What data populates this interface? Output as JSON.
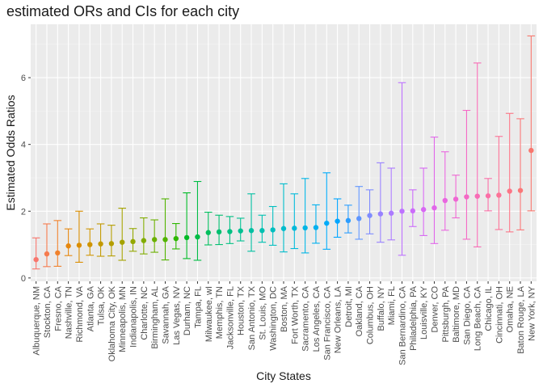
{
  "chart_data": {
    "type": "scatter",
    "title": "estimated ORs and CIs for each city",
    "xlabel": "City States",
    "ylabel": "Estimated Odds Ratios",
    "ylim": [
      -0.1,
      7.6
    ],
    "yticks": [
      0,
      2,
      4,
      6
    ],
    "grid": true,
    "legend": "none",
    "points": [
      {
        "city": "Albuquerque, NM",
        "or": 0.55,
        "lo": 0.27,
        "hi": 1.2,
        "color": "#F8766D"
      },
      {
        "city": "Stockton, CA",
        "or": 0.72,
        "lo": 0.34,
        "hi": 1.62,
        "color": "#F67B4E"
      },
      {
        "city": "Fresno, CA",
        "or": 0.75,
        "lo": 0.35,
        "hi": 1.72,
        "color": "#F0812C"
      },
      {
        "city": "Nashville, TN",
        "or": 0.96,
        "lo": 0.67,
        "hi": 1.47,
        "color": "#E6870E"
      },
      {
        "city": "Richmond, VA",
        "or": 0.98,
        "lo": 0.47,
        "hi": 2.0,
        "color": "#DB8E00"
      },
      {
        "city": "Atlanta, GA",
        "or": 1.0,
        "lo": 0.68,
        "hi": 1.47,
        "color": "#CF9400"
      },
      {
        "city": "Tulsa, OK",
        "or": 1.02,
        "lo": 0.65,
        "hi": 1.62,
        "color": "#C29900"
      },
      {
        "city": "Oklahoma City, OK",
        "or": 1.03,
        "lo": 0.66,
        "hi": 1.58,
        "color": "#B49E00"
      },
      {
        "city": "Minneapolis, MN",
        "or": 1.07,
        "lo": 0.53,
        "hi": 2.09,
        "color": "#A5A300"
      },
      {
        "city": "Indianapolis, IN",
        "or": 1.09,
        "lo": 0.8,
        "hi": 1.48,
        "color": "#94A800"
      },
      {
        "city": "Charlotte, NC",
        "or": 1.12,
        "lo": 0.72,
        "hi": 1.8,
        "color": "#81AC00"
      },
      {
        "city": "Birmingham, AL",
        "or": 1.15,
        "lo": 0.77,
        "hi": 1.74,
        "color": "#6BB000"
      },
      {
        "city": "Savannah, GA",
        "or": 1.15,
        "lo": 0.54,
        "hi": 2.37,
        "color": "#52B400"
      },
      {
        "city": "Las Vegas, NV",
        "or": 1.18,
        "lo": 0.87,
        "hi": 1.63,
        "color": "#2DB700"
      },
      {
        "city": "Durham, NC",
        "or": 1.21,
        "lo": 0.58,
        "hi": 2.55,
        "color": "#00BA26"
      },
      {
        "city": "Tampa, FL",
        "or": 1.23,
        "lo": 0.53,
        "hi": 2.89,
        "color": "#00BC45"
      },
      {
        "city": "Milwaukee, wI",
        "or": 1.36,
        "lo": 0.99,
        "hi": 1.97,
        "color": "#00BE5C"
      },
      {
        "city": "Memphis, TN",
        "or": 1.38,
        "lo": 1.0,
        "hi": 1.88,
        "color": "#00BF70"
      },
      {
        "city": "Jacksonville, FL",
        "or": 1.39,
        "lo": 1.03,
        "hi": 1.84,
        "color": "#00C082"
      },
      {
        "city": "Houston, TX",
        "or": 1.41,
        "lo": 1.11,
        "hi": 1.79,
        "color": "#00C092"
      },
      {
        "city": "San Antonio, TX",
        "or": 1.42,
        "lo": 0.8,
        "hi": 2.52,
        "color": "#00C0A2"
      },
      {
        "city": "St. Louis, MO",
        "or": 1.42,
        "lo": 1.07,
        "hi": 1.88,
        "color": "#00C0B1"
      },
      {
        "city": "Washington, DC",
        "or": 1.44,
        "lo": 0.98,
        "hi": 2.14,
        "color": "#00BEBF"
      },
      {
        "city": "Boston, MA",
        "or": 1.48,
        "lo": 0.78,
        "hi": 2.82,
        "color": "#00BCCC"
      },
      {
        "city": "Fort Worth, TX",
        "or": 1.49,
        "lo": 0.88,
        "hi": 2.52,
        "color": "#00B9D9"
      },
      {
        "city": "Sacramento, CA",
        "or": 1.5,
        "lo": 0.75,
        "hi": 2.98,
        "color": "#00B5E5"
      },
      {
        "city": "Los Angeles, CA",
        "or": 1.51,
        "lo": 1.04,
        "hi": 2.19,
        "color": "#00B0EF"
      },
      {
        "city": "San Francisco, CA",
        "or": 1.64,
        "lo": 0.86,
        "hi": 3.15,
        "color": "#00ABF9"
      },
      {
        "city": "New Orleans, LA",
        "or": 1.7,
        "lo": 1.22,
        "hi": 2.37,
        "color": "#00A5FF"
      },
      {
        "city": "Detroit, MI",
        "or": 1.72,
        "lo": 1.35,
        "hi": 2.18,
        "color": "#2A9DFF"
      },
      {
        "city": "Oakland, CA",
        "or": 1.78,
        "lo": 1.16,
        "hi": 2.74,
        "color": "#5E95FF"
      },
      {
        "city": "Columbus, OH",
        "or": 1.87,
        "lo": 1.32,
        "hi": 2.64,
        "color": "#7F8CFF"
      },
      {
        "city": "Buffalo, NY",
        "or": 1.92,
        "lo": 1.07,
        "hi": 3.45,
        "color": "#9882FF"
      },
      {
        "city": "Miami, FL",
        "or": 1.94,
        "lo": 1.14,
        "hi": 3.29,
        "color": "#AC7AFF"
      },
      {
        "city": "San Bernardino, CA",
        "or": 2.0,
        "lo": 0.68,
        "hi": 5.85,
        "color": "#BD72FF"
      },
      {
        "city": "Philadelphia, PA",
        "or": 2.01,
        "lo": 1.54,
        "hi": 2.64,
        "color": "#CB6CFA"
      },
      {
        "city": "Louisville, KY",
        "or": 2.05,
        "lo": 1.27,
        "hi": 3.29,
        "color": "#D768F3"
      },
      {
        "city": "Denver, CO",
        "or": 2.1,
        "lo": 1.03,
        "hi": 4.22,
        "color": "#E166EA"
      },
      {
        "city": "Pittsburgh, PA",
        "or": 2.32,
        "lo": 1.43,
        "hi": 3.78,
        "color": "#E966DF"
      },
      {
        "city": "Baltimore, MD",
        "or": 2.36,
        "lo": 1.8,
        "hi": 3.08,
        "color": "#EF67D3"
      },
      {
        "city": "San Diego, CA",
        "or": 2.43,
        "lo": 1.16,
        "hi": 5.02,
        "color": "#F469C5"
      },
      {
        "city": "Long Beach, CA",
        "or": 2.45,
        "lo": 0.93,
        "hi": 6.44,
        "color": "#F86CB6"
      },
      {
        "city": "Chicago, IL",
        "or": 2.46,
        "lo": 2.01,
        "hi": 2.98,
        "color": "#FB6FA7"
      },
      {
        "city": "Cincinnati, OH",
        "or": 2.48,
        "lo": 1.45,
        "hi": 4.24,
        "color": "#FC7297"
      },
      {
        "city": "Omaha, NE",
        "or": 2.6,
        "lo": 1.38,
        "hi": 4.93,
        "color": "#FC7586"
      },
      {
        "city": "Baton Rouge, LA",
        "or": 2.62,
        "lo": 1.44,
        "hi": 4.77,
        "color": "#FA7778"
      },
      {
        "city": "New York, NY",
        "or": 3.82,
        "lo": 2.01,
        "hi": 7.25,
        "color": "#F8766D"
      }
    ]
  }
}
